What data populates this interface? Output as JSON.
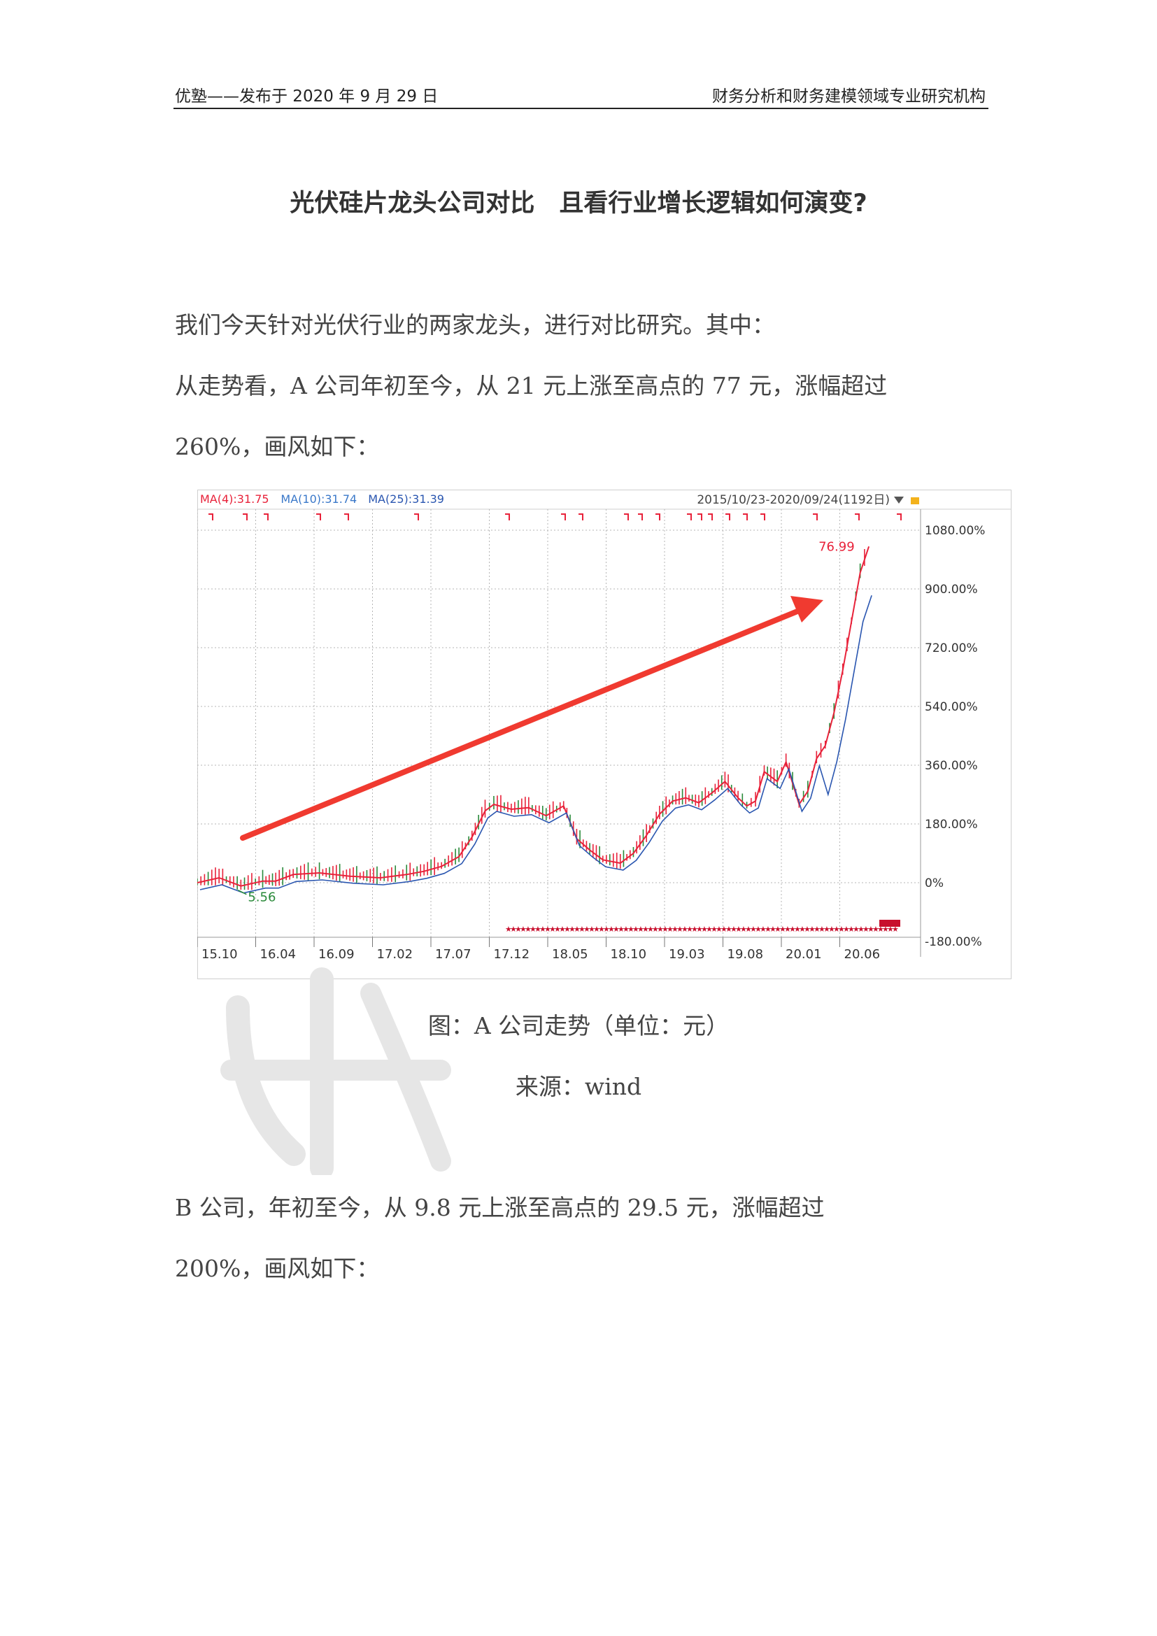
{
  "header": {
    "left": "优塾——发布于 2020 年 9 月 29 日",
    "right": "财务分析和财务建模领域专业研究机构"
  },
  "title": "光伏硅片龙头公司对比　且看行业增长逻辑如何演变?",
  "paragraphs": {
    "intro": "我们今天针对光伏行业的两家龙头，进行对比研究。其中：",
    "a_line1": "从走势看，A 公司年初至今，从 21 元上涨至高点的 77 元，涨幅超过",
    "a_line2": "260%，画风如下：",
    "b_line1": "B 公司，年初至今，从 9.8 元上涨至高点的 29.5 元，涨幅超过",
    "b_line2": "200%，画风如下："
  },
  "figure": {
    "caption": "图：A 公司走势（单位：元）",
    "source": "来源：wind"
  },
  "chart_data": {
    "type": "line",
    "ma_labels": [
      {
        "text": "MA(4):31.75",
        "color": "#e8223a"
      },
      {
        "text": "MA(10):31.74",
        "color": "#3a78c9"
      },
      {
        "text": "MA(25):31.39",
        "color": "#2a56b0"
      }
    ],
    "range_label": "2015/10/23-2020/09/24(1192日)",
    "y_ticks": [
      "1080.00%",
      "900.00%",
      "720.00%",
      "540.00%",
      "360.00%",
      "180.00%",
      "0%",
      "-180.00%"
    ],
    "x_ticks": [
      "15.10",
      "16.04",
      "16.09",
      "17.02",
      "17.07",
      "17.12",
      "18.05",
      "18.10",
      "19.03",
      "19.08",
      "20.01",
      "20.06"
    ],
    "annotations": {
      "high": "76.99",
      "low": "5.56"
    },
    "ylim": [
      -180,
      1080
    ],
    "x": [
      0,
      5,
      10,
      15,
      18,
      22,
      28,
      35,
      42,
      48,
      52,
      56,
      60,
      63,
      66,
      68,
      72,
      76,
      80,
      84,
      87,
      90,
      93,
      97,
      100,
      103,
      106,
      109,
      112,
      115,
      118,
      121,
      124,
      126,
      128,
      130,
      133,
      135,
      138,
      140,
      142,
      144,
      146,
      148,
      150,
      152,
      154
    ],
    "series": [
      {
        "values": [
          0,
          15,
          -10,
          5,
          5,
          25,
          30,
          20,
          15,
          25,
          35,
          50,
          80,
          140,
          220,
          240,
          225,
          230,
          205,
          235,
          135,
          100,
          70,
          60,
          90,
          145,
          210,
          250,
          260,
          245,
          275,
          310,
          260,
          235,
          250,
          340,
          310,
          370,
          240,
          280,
          380,
          420,
          520,
          650,
          800,
          950,
          1030
        ]
      }
    ],
    "grid": true
  },
  "colors": {
    "up": "#e8223a",
    "down": "#2a8a3a",
    "ma_short": "#e8223a",
    "ma_long": "#2a56b0",
    "arrow": "#f03a30",
    "grid": "#b5b5b5"
  }
}
